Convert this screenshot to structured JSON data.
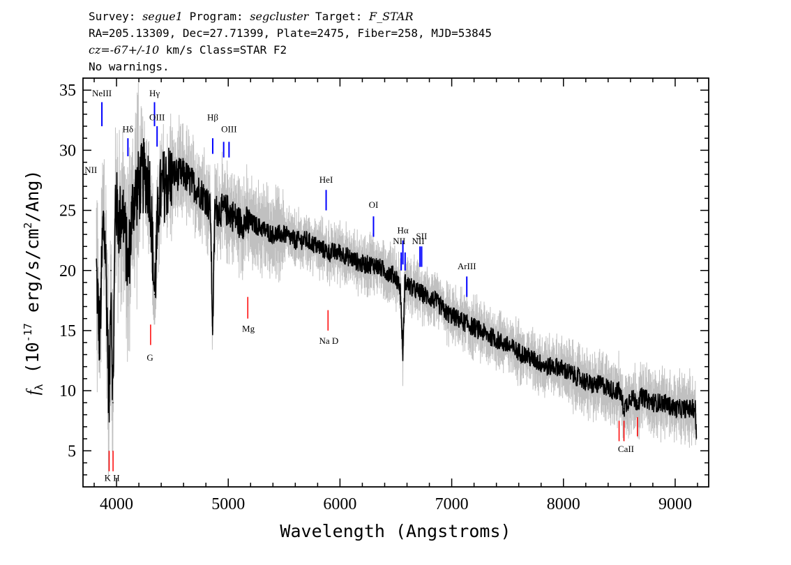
{
  "header": {
    "line1": {
      "survey_label": "Survey: ",
      "survey": "segue1",
      "program_label": " Program: ",
      "program": "segcluster",
      "target_label": " Target: ",
      "target": "F_STAR"
    },
    "line2": "RA=205.13309, Dec=27.71399, Plate=2475, Fiber=258, MJD=53845",
    "line3": {
      "cz_label": "cz=",
      "cz": "-67+/-10",
      "rest": " km/s Class=STAR F2"
    },
    "line4": "No warnings."
  },
  "colors": {
    "flux": "#000000",
    "error": "#c0c0c0",
    "emission": "#0000ff",
    "absorption": "#ff0000",
    "axes": "#000000"
  },
  "chart_data": {
    "type": "line",
    "xlabel": "Wavelength (Angstroms)",
    "ylabel": "f_λ (10^-17 erg/s/cm^2/Ang)",
    "xlim": [
      3700,
      9300
    ],
    "ylim": [
      2,
      36
    ],
    "x_ticks": [
      4000,
      5000,
      6000,
      7000,
      8000,
      9000
    ],
    "y_ticks": [
      5,
      10,
      15,
      20,
      25,
      30,
      35
    ],
    "grid": false,
    "series": [
      {
        "role": "flux",
        "x": [
          3820,
          3850,
          3880,
          3900,
          3920,
          3934,
          3950,
          3968,
          3990,
          4020,
          4060,
          4102,
          4150,
          4200,
          4250,
          4300,
          4340,
          4380,
          4420,
          4500,
          4600,
          4700,
          4800,
          4840,
          4861,
          4880,
          4950,
          5000,
          5100,
          5200,
          5300,
          5400,
          5500,
          5600,
          5700,
          5800,
          5900,
          6000,
          6100,
          6200,
          6300,
          6400,
          6500,
          6540,
          6563,
          6580,
          6650,
          6750,
          6850,
          6950,
          7050,
          7150,
          7250,
          7350,
          7450,
          7550,
          7650,
          7750,
          7850,
          7950,
          8050,
          8150,
          8250,
          8350,
          8450,
          8500,
          8542,
          8600,
          8662,
          8700,
          8800,
          8900,
          9000,
          9100,
          9150,
          9180,
          9190
        ],
        "y": [
          20,
          14,
          24,
          22,
          15,
          8,
          20,
          9,
          26,
          24,
          25,
          20,
          26,
          27,
          28,
          27,
          18,
          26,
          27,
          28,
          28,
          27,
          26,
          25,
          15,
          25,
          25,
          25,
          24,
          24,
          23.5,
          23,
          23,
          22.5,
          22.5,
          22,
          21.5,
          21.5,
          21,
          20.5,
          20.5,
          20,
          19.5,
          18.5,
          13,
          19,
          18.5,
          18,
          17.5,
          16.5,
          16,
          15.5,
          15,
          14.5,
          14,
          13.5,
          13,
          12.5,
          12,
          12,
          11.5,
          11,
          10.5,
          10.5,
          10,
          10,
          8.5,
          9.5,
          9,
          9.5,
          9,
          9,
          8.5,
          8.5,
          8.5,
          8.5,
          6
        ]
      }
    ],
    "emission_lines": [
      {
        "label": "NeIII",
        "wavelength": 3869,
        "y_top": 34,
        "y_bottom": 32
      },
      {
        "label": "Hδ",
        "wavelength": 4102,
        "y_top": 31,
        "y_bottom": 29.5
      },
      {
        "label": "Hγ",
        "wavelength": 4340,
        "y_top": 34,
        "y_bottom": 32
      },
      {
        "label": "OIII",
        "wavelength": 4363,
        "y_top": 32,
        "y_bottom": 30.3
      },
      {
        "label": "Hβ",
        "wavelength": 4861,
        "y_top": 31,
        "y_bottom": 29.7
      },
      {
        "label": "OIII",
        "wavelength": 4959,
        "y_top": 30.7,
        "y_bottom": 29.4
      },
      {
        "label": "OIII",
        "wavelength": 5007,
        "y_top": 30.7,
        "y_bottom": 29.4
      },
      {
        "label": "HeI",
        "wavelength": 5876,
        "y_top": 26.7,
        "y_bottom": 25
      },
      {
        "label": "OI",
        "wavelength": 6300,
        "y_top": 24.5,
        "y_bottom": 22.8
      },
      {
        "label": "NII",
        "wavelength": 6548,
        "y_top": 21.5,
        "y_bottom": 20
      },
      {
        "label": "Hα",
        "wavelength": 6563,
        "y_top": 22.5,
        "y_bottom": 20.5
      },
      {
        "label": "NII",
        "wavelength": 6583,
        "y_top": 21.5,
        "y_bottom": 20
      },
      {
        "label": "SII",
        "wavelength": 6716,
        "y_top": 22,
        "y_bottom": 20.3
      },
      {
        "label": "SII",
        "wavelength": 6731,
        "y_top": 22,
        "y_bottom": 20.3
      },
      {
        "label": "ArIII",
        "wavelength": 7135,
        "y_top": 19.5,
        "y_bottom": 17.8
      }
    ],
    "absorption_lines": [
      {
        "label": "K",
        "wavelength": 3934,
        "y_top": 5,
        "y_bottom": 3.3
      },
      {
        "label": "H",
        "wavelength": 3969,
        "y_top": 5,
        "y_bottom": 3.3
      },
      {
        "label": "G",
        "wavelength": 4305,
        "y_top": 15.5,
        "y_bottom": 13.8
      },
      {
        "label": "Mg",
        "wavelength": 5175,
        "y_top": 17.8,
        "y_bottom": 16
      },
      {
        "label": "Na D",
        "wavelength": 5893,
        "y_top": 16.7,
        "y_bottom": 15
      },
      {
        "label": "CaII",
        "wavelength": 8498,
        "y_top": 7.5,
        "y_bottom": 5.8
      },
      {
        "label": "CaII",
        "wavelength": 8542,
        "y_top": 7.5,
        "y_bottom": 5.8
      },
      {
        "label": "CaII",
        "wavelength": 8662,
        "y_top": 7.8,
        "y_bottom": 6.2
      }
    ],
    "line_labels": [
      {
        "text": "NeIII",
        "wavelength": 3869,
        "y": 34.5
      },
      {
        "text": "Hδ",
        "wavelength": 4102,
        "y": 31.5
      },
      {
        "text": "Hγ",
        "wavelength": 4340,
        "y": 34.5
      },
      {
        "text": "OIII",
        "wavelength": 4363,
        "y": 32.5
      },
      {
        "text": "Hβ",
        "wavelength": 4861,
        "y": 32.5
      },
      {
        "text": "OIII",
        "wavelength": 5007,
        "y": 31.5
      },
      {
        "text": "HeI",
        "wavelength": 5876,
        "y": 27.3
      },
      {
        "text": "OI",
        "wavelength": 6300,
        "y": 25.2
      },
      {
        "text": "Hα",
        "wavelength": 6563,
        "y": 23.1
      },
      {
        "text": "NII",
        "wavelength": 6530,
        "y": 22.2
      },
      {
        "text": "NII",
        "wavelength": 6700,
        "y": 22.2
      },
      {
        "text": "SII",
        "wavelength": 6730,
        "y": 22.6
      },
      {
        "text": "ArIII",
        "wavelength": 7135,
        "y": 20.1
      },
      {
        "text": "NII",
        "wavelength": 3770,
        "y": 28.1
      },
      {
        "text": "K H",
        "wavelength": 3960,
        "y": 2.5
      },
      {
        "text": "G",
        "wavelength": 4300,
        "y": 12.5
      },
      {
        "text": "Mg",
        "wavelength": 5180,
        "y": 14.9
      },
      {
        "text": "Na  D",
        "wavelength": 5900,
        "y": 13.9
      },
      {
        "text": "CaII",
        "wavelength": 8560,
        "y": 4.9
      }
    ]
  }
}
